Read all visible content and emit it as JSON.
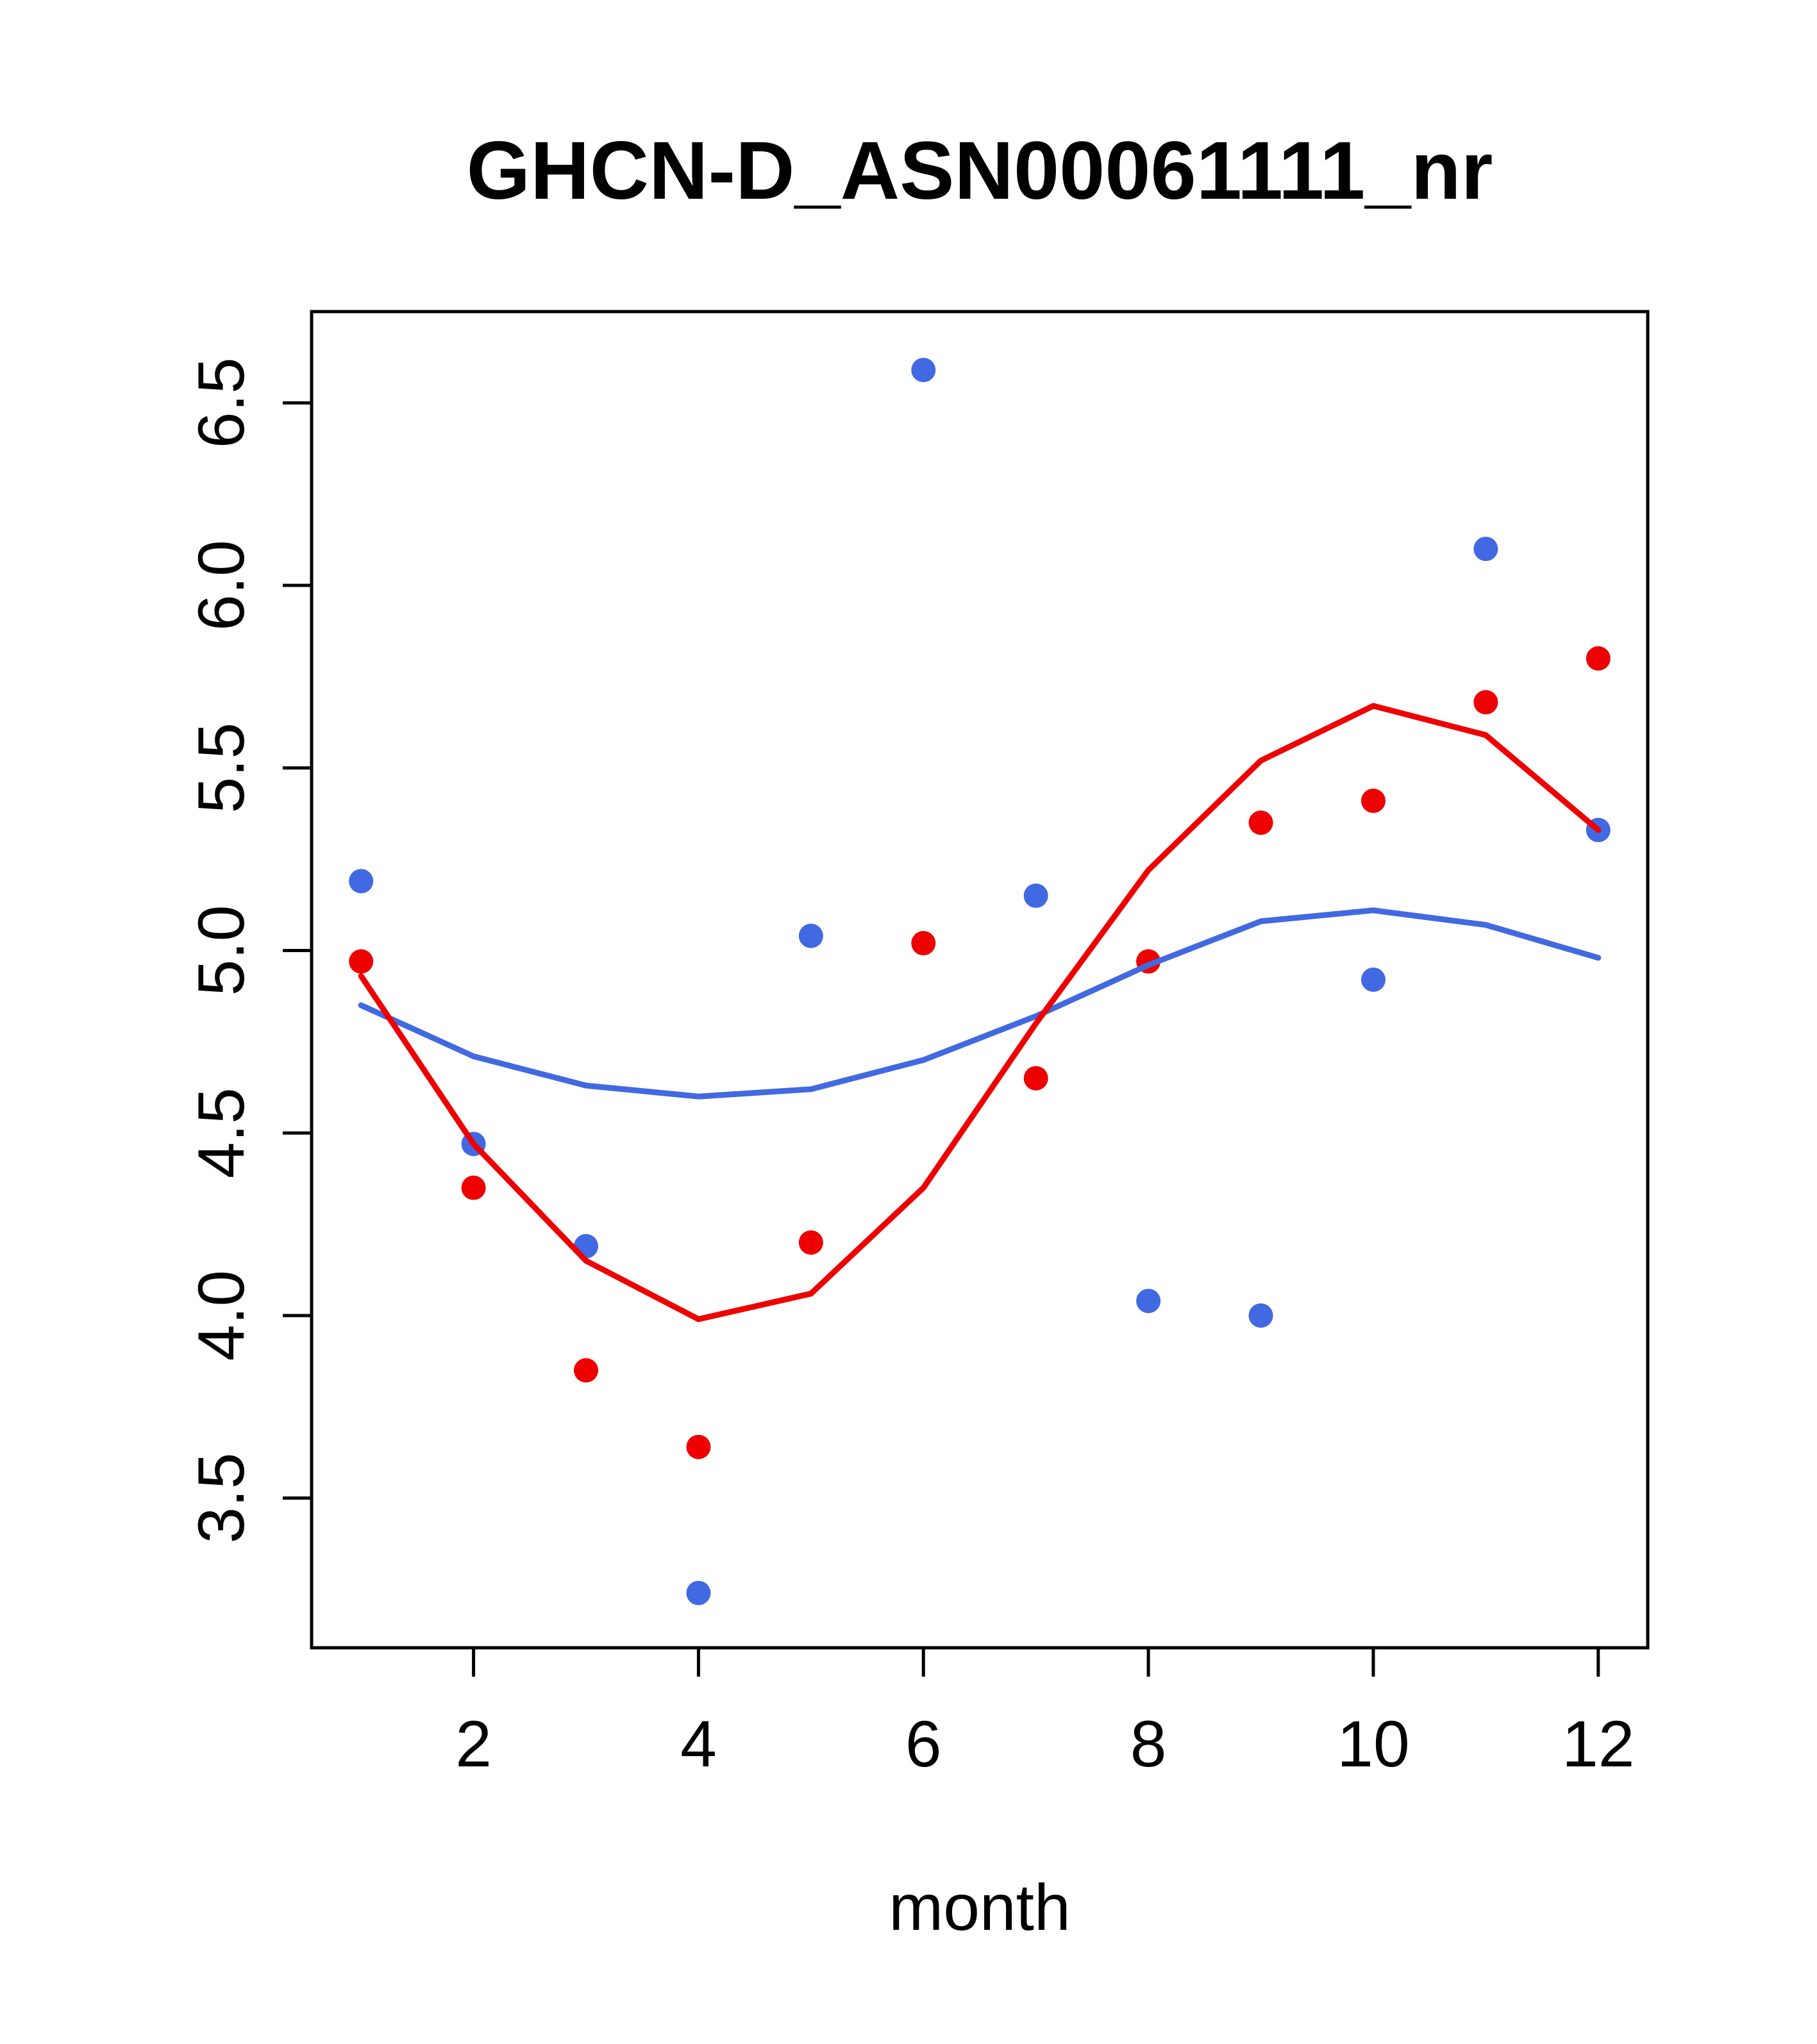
{
  "page": {
    "background": "#ffffff"
  },
  "chart_data": {
    "type": "scatter",
    "title": "GHCN-D_ASN00061111_nr",
    "xlabel": "month",
    "ylabel": "",
    "xlim": [
      0.56,
      12.44
    ],
    "ylim": [
      3.09,
      6.75
    ],
    "grid": false,
    "legend": null,
    "x_ticks": [
      2,
      4,
      6,
      8,
      10,
      12
    ],
    "x_tick_labels": [
      "2",
      "4",
      "6",
      "8",
      "10",
      "12"
    ],
    "y_ticks": [
      3.5,
      4.0,
      4.5,
      5.0,
      5.5,
      6.0,
      6.5
    ],
    "y_tick_labels": [
      "3.5",
      "4.0",
      "4.5",
      "5.0",
      "5.5",
      "6.0",
      "6.5"
    ],
    "x": [
      1,
      2,
      3,
      4,
      5,
      6,
      7,
      8,
      9,
      10,
      11,
      12
    ],
    "colors": {
      "blue": "#4169E1",
      "red": "#EE0000",
      "axis": "#000000"
    },
    "series": [
      {
        "name": "blue-points",
        "kind": "points",
        "color": "#4169E1",
        "values": [
          5.19,
          4.47,
          4.19,
          3.24,
          5.04,
          6.59,
          5.15,
          4.04,
          4.0,
          4.92,
          6.1,
          5.33
        ]
      },
      {
        "name": "red-points",
        "kind": "points",
        "color": "#EE0000",
        "values": [
          4.97,
          4.35,
          3.85,
          3.64,
          4.2,
          5.02,
          4.65,
          4.97,
          5.35,
          5.41,
          5.68,
          5.8
        ]
      },
      {
        "name": "blue-smooth-line",
        "kind": "line",
        "color": "#4169E1",
        "values": [
          4.85,
          4.71,
          4.63,
          4.6,
          4.62,
          4.7,
          4.82,
          4.96,
          5.08,
          5.11,
          5.07,
          4.98
        ]
      },
      {
        "name": "red-smooth-line",
        "kind": "line",
        "color": "#EE0000",
        "values": [
          4.93,
          4.47,
          4.15,
          3.99,
          4.06,
          4.35,
          4.8,
          5.22,
          5.52,
          5.67,
          5.59,
          5.33
        ]
      }
    ]
  }
}
